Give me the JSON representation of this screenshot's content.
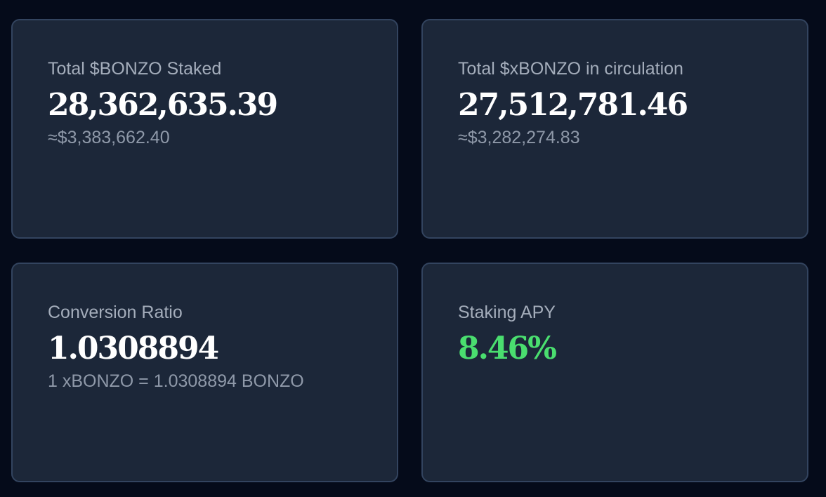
{
  "cards": [
    {
      "label": "Total $BONZO Staked",
      "value": "28,362,635.39",
      "sub": "≈$3,383,662.40"
    },
    {
      "label": "Total $xBONZO in circulation",
      "value": "27,512,781.46",
      "sub": "≈$3,282,274.83"
    },
    {
      "label": "Conversion Ratio",
      "value": "1.0308894",
      "sub": "1 xBONZO = 1.0308894 BONZO"
    },
    {
      "label": "Staking APY",
      "value": "8.46%"
    }
  ],
  "colors": {
    "background": "#050b1a",
    "card": "#1c2739",
    "card_border": "#33445f",
    "apy_green": "#4ade6f"
  }
}
